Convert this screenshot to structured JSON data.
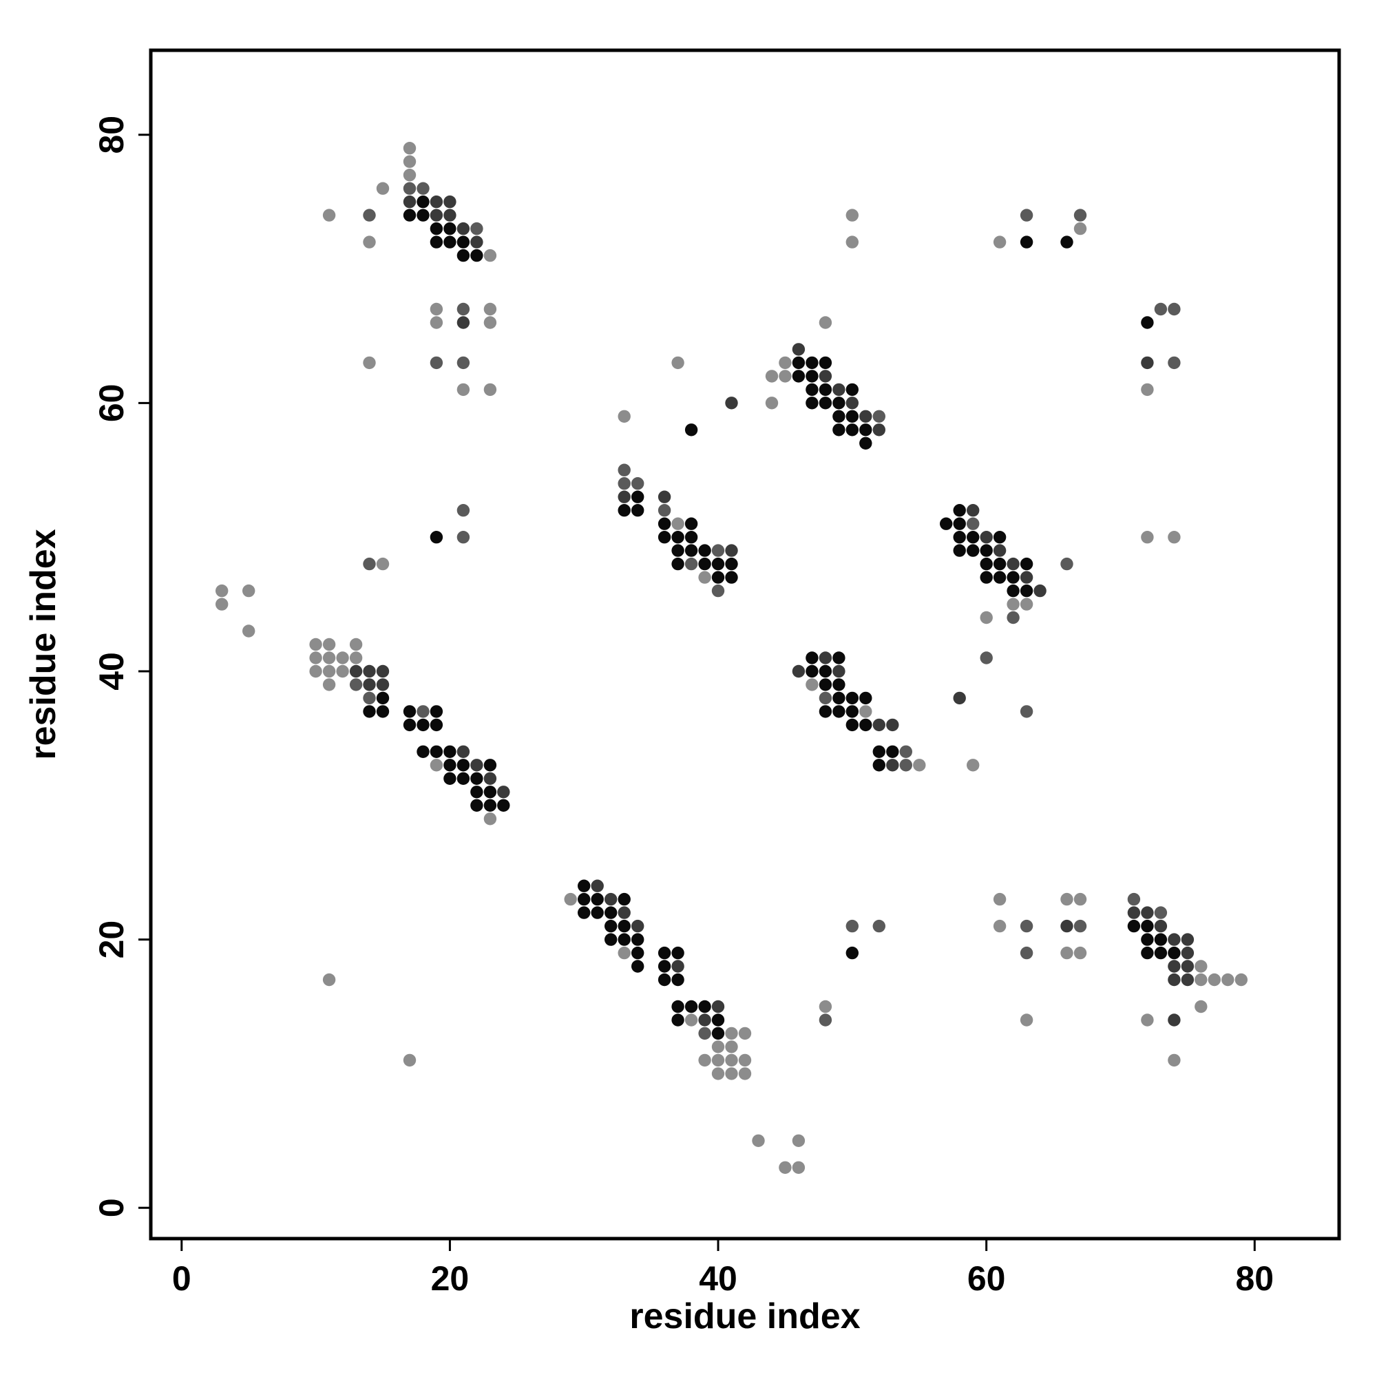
{
  "chart_data": {
    "type": "scatter",
    "title": "",
    "xlabel": "residue index",
    "ylabel": "residue index",
    "xlim": [
      -2.3,
      86.3
    ],
    "ylim": [
      -2.3,
      86.3
    ],
    "xticks": [
      0,
      20,
      40,
      60,
      80
    ],
    "yticks": [
      0,
      20,
      40,
      60,
      80
    ],
    "grid": false,
    "legend": "none",
    "colors": {
      "c1": "#0a0a0a",
      "c2": "#3a3a3a",
      "c3": "#5a5a5a",
      "c4": "#8c8c8c"
    },
    "points": [
      [
        17,
        79,
        4
      ],
      [
        17,
        78,
        4
      ],
      [
        17,
        77,
        4
      ],
      [
        17,
        76,
        3
      ],
      [
        18,
        76,
        3
      ],
      [
        15,
        76,
        4
      ],
      [
        11,
        74,
        4
      ],
      [
        14,
        74,
        3
      ],
      [
        17,
        74,
        1
      ],
      [
        18,
        74,
        1
      ],
      [
        19,
        74,
        2
      ],
      [
        20,
        74,
        2
      ],
      [
        17,
        75,
        2
      ],
      [
        18,
        75,
        1
      ],
      [
        19,
        75,
        2
      ],
      [
        20,
        75,
        2
      ],
      [
        19,
        73,
        1
      ],
      [
        20,
        73,
        1
      ],
      [
        21,
        73,
        2
      ],
      [
        22,
        73,
        3
      ],
      [
        19,
        72,
        1
      ],
      [
        20,
        72,
        1
      ],
      [
        21,
        72,
        1
      ],
      [
        22,
        72,
        2
      ],
      [
        14,
        72,
        4
      ],
      [
        21,
        71,
        1
      ],
      [
        22,
        71,
        1
      ],
      [
        23,
        71,
        4
      ],
      [
        19,
        67,
        4
      ],
      [
        21,
        67,
        3
      ],
      [
        23,
        67,
        4
      ],
      [
        19,
        66,
        4
      ],
      [
        21,
        66,
        2
      ],
      [
        23,
        66,
        4
      ],
      [
        14,
        63,
        4
      ],
      [
        19,
        63,
        3
      ],
      [
        21,
        63,
        3
      ],
      [
        21,
        61,
        4
      ],
      [
        23,
        61,
        4
      ],
      [
        21,
        52,
        3
      ],
      [
        19,
        50,
        1
      ],
      [
        21,
        50,
        3
      ],
      [
        14,
        48,
        3
      ],
      [
        15,
        48,
        4
      ],
      [
        3,
        46,
        4
      ],
      [
        5,
        46,
        4
      ],
      [
        3,
        45,
        4
      ],
      [
        5,
        43,
        4
      ],
      [
        10,
        42,
        4
      ],
      [
        11,
        42,
        4
      ],
      [
        13,
        42,
        4
      ],
      [
        10,
        41,
        4
      ],
      [
        11,
        41,
        4
      ],
      [
        12,
        41,
        4
      ],
      [
        13,
        41,
        4
      ],
      [
        10,
        40,
        4
      ],
      [
        11,
        40,
        4
      ],
      [
        12,
        40,
        4
      ],
      [
        13,
        40,
        2
      ],
      [
        14,
        40,
        2
      ],
      [
        15,
        40,
        2
      ],
      [
        11,
        39,
        4
      ],
      [
        13,
        39,
        3
      ],
      [
        14,
        39,
        2
      ],
      [
        15,
        39,
        2
      ],
      [
        14,
        38,
        3
      ],
      [
        15,
        38,
        1
      ],
      [
        14,
        37,
        1
      ],
      [
        15,
        37,
        1
      ],
      [
        17,
        37,
        1
      ],
      [
        18,
        37,
        3
      ],
      [
        19,
        37,
        1
      ],
      [
        17,
        36,
        1
      ],
      [
        18,
        36,
        1
      ],
      [
        19,
        36,
        1
      ],
      [
        18,
        34,
        1
      ],
      [
        19,
        34,
        1
      ],
      [
        20,
        34,
        1
      ],
      [
        21,
        34,
        2
      ],
      [
        19,
        33,
        4
      ],
      [
        20,
        33,
        1
      ],
      [
        21,
        33,
        1
      ],
      [
        22,
        33,
        2
      ],
      [
        23,
        33,
        1
      ],
      [
        20,
        32,
        1
      ],
      [
        21,
        32,
        1
      ],
      [
        22,
        32,
        1
      ],
      [
        23,
        32,
        2
      ],
      [
        22,
        31,
        1
      ],
      [
        23,
        31,
        1
      ],
      [
        24,
        31,
        2
      ],
      [
        22,
        30,
        1
      ],
      [
        23,
        30,
        1
      ],
      [
        24,
        30,
        1
      ],
      [
        23,
        29,
        4
      ],
      [
        11,
        17,
        4
      ],
      [
        17,
        11,
        4
      ],
      [
        33,
        59,
        4
      ],
      [
        37,
        63,
        4
      ],
      [
        38,
        58,
        1
      ],
      [
        41,
        60,
        2
      ],
      [
        33,
        55,
        3
      ],
      [
        33,
        54,
        3
      ],
      [
        34,
        54,
        3
      ],
      [
        33,
        53,
        2
      ],
      [
        34,
        53,
        1
      ],
      [
        33,
        52,
        1
      ],
      [
        34,
        52,
        1
      ],
      [
        36,
        53,
        2
      ],
      [
        36,
        52,
        3
      ],
      [
        36,
        51,
        1
      ],
      [
        37,
        51,
        4
      ],
      [
        38,
        51,
        1
      ],
      [
        36,
        50,
        1
      ],
      [
        37,
        50,
        1
      ],
      [
        38,
        50,
        1
      ],
      [
        37,
        49,
        1
      ],
      [
        38,
        49,
        1
      ],
      [
        39,
        49,
        1
      ],
      [
        40,
        49,
        3
      ],
      [
        41,
        49,
        2
      ],
      [
        37,
        48,
        1
      ],
      [
        38,
        48,
        3
      ],
      [
        39,
        48,
        1
      ],
      [
        40,
        48,
        1
      ],
      [
        41,
        48,
        1
      ],
      [
        39,
        47,
        4
      ],
      [
        40,
        47,
        1
      ],
      [
        41,
        47,
        1
      ],
      [
        40,
        46,
        3
      ],
      [
        48,
        66,
        4
      ],
      [
        44,
        62,
        4
      ],
      [
        45,
        62,
        4
      ],
      [
        45,
        63,
        4
      ],
      [
        46,
        64,
        2
      ],
      [
        46,
        63,
        1
      ],
      [
        47,
        63,
        1
      ],
      [
        48,
        63,
        1
      ],
      [
        46,
        62,
        1
      ],
      [
        47,
        62,
        1
      ],
      [
        48,
        62,
        2
      ],
      [
        47,
        61,
        1
      ],
      [
        48,
        61,
        1
      ],
      [
        49,
        61,
        2
      ],
      [
        50,
        61,
        1
      ],
      [
        44,
        60,
        4
      ],
      [
        47,
        60,
        1
      ],
      [
        48,
        60,
        1
      ],
      [
        49,
        60,
        1
      ],
      [
        50,
        60,
        2
      ],
      [
        49,
        59,
        1
      ],
      [
        50,
        59,
        1
      ],
      [
        51,
        59,
        2
      ],
      [
        52,
        59,
        3
      ],
      [
        49,
        58,
        1
      ],
      [
        50,
        58,
        1
      ],
      [
        51,
        58,
        1
      ],
      [
        52,
        58,
        2
      ],
      [
        51,
        57,
        1
      ],
      [
        50,
        74,
        4
      ],
      [
        50,
        72,
        4
      ],
      [
        61,
        72,
        4
      ],
      [
        63,
        74,
        3
      ],
      [
        63,
        72,
        1
      ],
      [
        66,
        72,
        1
      ],
      [
        67,
        74,
        3
      ],
      [
        67,
        73,
        4
      ],
      [
        72,
        66,
        1
      ],
      [
        73,
        67,
        3
      ],
      [
        74,
        67,
        3
      ],
      [
        72,
        63,
        2
      ],
      [
        74,
        63,
        3
      ],
      [
        72,
        61,
        4
      ],
      [
        72,
        50,
        4
      ],
      [
        74,
        50,
        4
      ],
      [
        57,
        51,
        1
      ],
      [
        58,
        52,
        1
      ],
      [
        59,
        52,
        2
      ],
      [
        58,
        51,
        1
      ],
      [
        59,
        51,
        3
      ],
      [
        58,
        50,
        1
      ],
      [
        59,
        50,
        1
      ],
      [
        60,
        50,
        2
      ],
      [
        61,
        50,
        1
      ],
      [
        58,
        49,
        1
      ],
      [
        59,
        49,
        1
      ],
      [
        60,
        49,
        1
      ],
      [
        61,
        49,
        2
      ],
      [
        60,
        48,
        1
      ],
      [
        61,
        48,
        1
      ],
      [
        62,
        48,
        2
      ],
      [
        63,
        48,
        1
      ],
      [
        66,
        48,
        3
      ],
      [
        60,
        47,
        1
      ],
      [
        61,
        47,
        1
      ],
      [
        62,
        47,
        1
      ],
      [
        63,
        47,
        2
      ],
      [
        62,
        46,
        1
      ],
      [
        63,
        46,
        1
      ],
      [
        64,
        46,
        2
      ],
      [
        62,
        45,
        4
      ],
      [
        63,
        45,
        4
      ],
      [
        60,
        44,
        4
      ],
      [
        62,
        44,
        3
      ],
      [
        60,
        41,
        3
      ],
      [
        58,
        38,
        2
      ],
      [
        63,
        37,
        3
      ],
      [
        59,
        33,
        4
      ],
      [
        46,
        40,
        2
      ],
      [
        47,
        41,
        1
      ],
      [
        48,
        41,
        2
      ],
      [
        49,
        41,
        1
      ],
      [
        47,
        40,
        1
      ],
      [
        48,
        40,
        1
      ],
      [
        49,
        40,
        2
      ],
      [
        47,
        39,
        4
      ],
      [
        48,
        39,
        1
      ],
      [
        49,
        39,
        1
      ],
      [
        48,
        38,
        3
      ],
      [
        49,
        38,
        1
      ],
      [
        50,
        38,
        1
      ],
      [
        51,
        38,
        1
      ],
      [
        48,
        37,
        1
      ],
      [
        49,
        37,
        1
      ],
      [
        50,
        37,
        1
      ],
      [
        51,
        37,
        4
      ],
      [
        50,
        36,
        1
      ],
      [
        51,
        36,
        1
      ],
      [
        52,
        36,
        2
      ],
      [
        53,
        36,
        2
      ],
      [
        52,
        34,
        1
      ],
      [
        53,
        34,
        1
      ],
      [
        54,
        34,
        3
      ],
      [
        52,
        33,
        1
      ],
      [
        53,
        33,
        2
      ],
      [
        54,
        33,
        3
      ],
      [
        55,
        33,
        4
      ],
      [
        29,
        23,
        4
      ],
      [
        30,
        24,
        1
      ],
      [
        31,
        24,
        2
      ],
      [
        30,
        23,
        1
      ],
      [
        31,
        23,
        1
      ],
      [
        32,
        23,
        2
      ],
      [
        33,
        23,
        1
      ],
      [
        30,
        22,
        1
      ],
      [
        31,
        22,
        1
      ],
      [
        32,
        22,
        1
      ],
      [
        33,
        22,
        2
      ],
      [
        32,
        21,
        1
      ],
      [
        33,
        21,
        1
      ],
      [
        34,
        21,
        2
      ],
      [
        32,
        20,
        1
      ],
      [
        33,
        20,
        1
      ],
      [
        34,
        20,
        1
      ],
      [
        33,
        19,
        4
      ],
      [
        34,
        19,
        1
      ],
      [
        34,
        18,
        1
      ],
      [
        36,
        19,
        1
      ],
      [
        37,
        19,
        1
      ],
      [
        36,
        18,
        1
      ],
      [
        37,
        18,
        2
      ],
      [
        36,
        17,
        1
      ],
      [
        37,
        17,
        1
      ],
      [
        37,
        15,
        1
      ],
      [
        38,
        15,
        1
      ],
      [
        39,
        15,
        1
      ],
      [
        40,
        15,
        2
      ],
      [
        37,
        14,
        1
      ],
      [
        38,
        14,
        4
      ],
      [
        39,
        14,
        2
      ],
      [
        40,
        14,
        1
      ],
      [
        39,
        13,
        3
      ],
      [
        40,
        13,
        1
      ],
      [
        41,
        13,
        4
      ],
      [
        42,
        13,
        4
      ],
      [
        40,
        12,
        4
      ],
      [
        41,
        12,
        4
      ],
      [
        39,
        11,
        4
      ],
      [
        40,
        11,
        4
      ],
      [
        41,
        11,
        4
      ],
      [
        42,
        11,
        4
      ],
      [
        40,
        10,
        4
      ],
      [
        41,
        10,
        4
      ],
      [
        42,
        10,
        4
      ],
      [
        43,
        5,
        4
      ],
      [
        46,
        5,
        4
      ],
      [
        45,
        3,
        4
      ],
      [
        46,
        3,
        4
      ],
      [
        50,
        21,
        3
      ],
      [
        52,
        21,
        3
      ],
      [
        50,
        19,
        1
      ],
      [
        48,
        15,
        4
      ],
      [
        48,
        14,
        3
      ],
      [
        61,
        23,
        4
      ],
      [
        66,
        23,
        4
      ],
      [
        67,
        23,
        4
      ],
      [
        61,
        21,
        4
      ],
      [
        63,
        21,
        3
      ],
      [
        66,
        21,
        2
      ],
      [
        67,
        21,
        3
      ],
      [
        63,
        19,
        3
      ],
      [
        66,
        19,
        4
      ],
      [
        67,
        19,
        4
      ],
      [
        63,
        14,
        4
      ],
      [
        71,
        23,
        3
      ],
      [
        71,
        22,
        2
      ],
      [
        72,
        22,
        2
      ],
      [
        73,
        22,
        3
      ],
      [
        71,
        21,
        1
      ],
      [
        72,
        21,
        1
      ],
      [
        73,
        21,
        2
      ],
      [
        72,
        20,
        1
      ],
      [
        73,
        20,
        1
      ],
      [
        74,
        20,
        2
      ],
      [
        75,
        20,
        2
      ],
      [
        72,
        19,
        1
      ],
      [
        73,
        19,
        1
      ],
      [
        74,
        19,
        1
      ],
      [
        75,
        19,
        2
      ],
      [
        74,
        18,
        2
      ],
      [
        75,
        18,
        2
      ],
      [
        76,
        18,
        4
      ],
      [
        74,
        17,
        2
      ],
      [
        75,
        17,
        2
      ],
      [
        76,
        17,
        4
      ],
      [
        77,
        17,
        4
      ],
      [
        78,
        17,
        4
      ],
      [
        79,
        17,
        4
      ],
      [
        76,
        15,
        4
      ],
      [
        72,
        14,
        4
      ],
      [
        74,
        14,
        2
      ],
      [
        74,
        11,
        4
      ]
    ]
  }
}
